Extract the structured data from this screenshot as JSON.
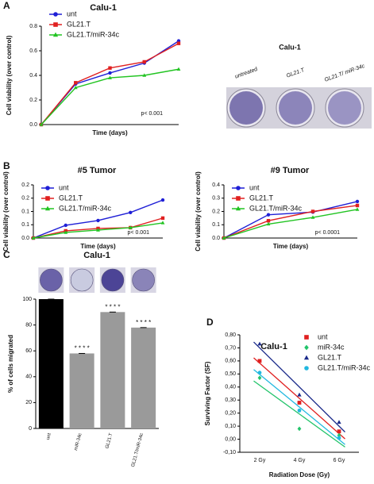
{
  "chart_data": [
    {
      "type": "line",
      "panel": "A",
      "title": "Calu-1",
      "ylabel": "Cell viability (over control)",
      "xlabel": "Time (days)",
      "annotation": "p< 0.001",
      "categories": [
        null,
        null,
        null,
        null,
        null
      ],
      "ylim": [
        0,
        0.8
      ],
      "yticks": [
        {
          "value": 0,
          "label": "0.0"
        },
        {
          "value": 0.2,
          "label": "0.2"
        },
        {
          "value": 0.4,
          "label": "0.4"
        },
        {
          "value": 0.6,
          "label": "0.6"
        },
        {
          "value": 0.8,
          "label": "0.8"
        }
      ],
      "legend": "upper left",
      "series": [
        {
          "name": "unt",
          "color": "#1f1fd6",
          "marker": "circle",
          "values": [
            0,
            0.33,
            0.42,
            0.5,
            0.68
          ]
        },
        {
          "name": "GL21.T",
          "color": "#e02020",
          "marker": "square",
          "values": [
            0,
            0.34,
            0.46,
            0.51,
            0.66
          ]
        },
        {
          "name": "GL21.T/miR-34c",
          "color": "#22c422",
          "marker": "triangle",
          "values": [
            0,
            0.3,
            0.38,
            0.4,
            0.45
          ]
        }
      ]
    },
    {
      "type": "image",
      "title": "Calu-1",
      "labels": [
        "untreated",
        "GL21.T",
        "GL21.T/ miR-34c"
      ]
    },
    {
      "type": "line",
      "panel": "B",
      "title": "#5 Tumor",
      "ylabel": "Cell viability (over control)",
      "xlabel": "Time (days)",
      "annotation": "p< 0.001",
      "categories": [
        null,
        null,
        null,
        null,
        null
      ],
      "ylim": [
        0,
        0.2
      ],
      "yticks": [
        {
          "value": 0,
          "label": "0.0"
        },
        {
          "value": 0.05,
          "label": "0.1"
        },
        0.1,
        {
          "value": 0.15,
          "label": "0.2"
        },
        0.2
      ],
      "legend": "upper left",
      "series": [
        {
          "name": "unt",
          "color": "#1f1fd6",
          "marker": "circle",
          "values": [
            0,
            0.048,
            0.066,
            0.096,
            0.143
          ]
        },
        {
          "name": "GL21.T",
          "color": "#e02020",
          "marker": "square",
          "values": [
            0,
            0.027,
            0.036,
            0.039,
            0.075
          ]
        },
        {
          "name": "GL21.T/miR-34c",
          "color": "#22c422",
          "marker": "triangle",
          "values": [
            0,
            0.021,
            0.03,
            0.039,
            0.057
          ]
        }
      ]
    },
    {
      "type": "line",
      "title": "#9 Tumor",
      "ylabel": "Cell viability (over control)",
      "xlabel": "Time (days)",
      "annotation": "p< 0.0001",
      "categories": [
        null,
        null,
        null,
        null
      ],
      "ylim": [
        0,
        0.4
      ],
      "yticks": [
        {
          "value": 0,
          "label": "0.0"
        },
        0.1,
        0.2,
        0.3,
        0.4
      ],
      "legend": "upper left",
      "series": [
        {
          "name": "unt",
          "color": "#1f1fd6",
          "marker": "circle",
          "values": [
            0,
            0.175,
            0.195,
            0.275
          ]
        },
        {
          "name": "GL21.T",
          "color": "#e02020",
          "marker": "square",
          "values": [
            0,
            0.13,
            0.2,
            0.245
          ]
        },
        {
          "name": "GL21.T/miR-34c",
          "color": "#22c422",
          "marker": "triangle",
          "values": [
            0,
            0.105,
            0.155,
            0.215
          ]
        }
      ]
    },
    {
      "type": "bar",
      "panel": "C",
      "title": "Calu-1",
      "ylabel": "% of cells migrated",
      "categories": [
        "unt",
        "miR-34c",
        "GL21.T",
        "GL21.T/miR-34c"
      ],
      "values": [
        100,
        58,
        90,
        78
      ],
      "colors": [
        "#000000",
        "#9a9a9a",
        "#9a9a9a",
        "#9a9a9a"
      ],
      "bar_annotations": [
        null,
        "* * * *",
        "* * * *",
        "* * * *"
      ],
      "ylim": [
        0,
        100
      ],
      "yticks": [
        0,
        20,
        40,
        60,
        80,
        100
      ]
    },
    {
      "type": "scatter",
      "panel": "D",
      "title": "Calu-1",
      "ylabel": "Surviving Factor (SF)",
      "xlabel": "Radiation Dose (Gy)",
      "categories": [
        "2 Gy",
        "4 Gy",
        "6 Gy"
      ],
      "ylim": [
        -0.1,
        0.8
      ],
      "yticks": [
        {
          "value": -0.1,
          "label": "-0,10"
        },
        {
          "value": 0,
          "label": "0,00"
        },
        {
          "value": 0.1,
          "label": "0,10"
        },
        {
          "value": 0.2,
          "label": "0,20"
        },
        {
          "value": 0.3,
          "label": "0,30"
        },
        {
          "value": 0.4,
          "label": "0,40"
        },
        {
          "value": 0.5,
          "label": "0,50"
        },
        {
          "value": 0.6,
          "label": "0,60"
        },
        {
          "value": 0.7,
          "label": "0,70"
        },
        {
          "value": 0.8,
          "label": "0,80"
        }
      ],
      "legend": "upper right",
      "trendline": true,
      "series": [
        {
          "name": "unt",
          "color": "#e02020",
          "marker": "square",
          "values": [
            0.6,
            0.28,
            0.06
          ]
        },
        {
          "name": "miR-34c",
          "color": "#22c46a",
          "marker": "diamond",
          "values": [
            0.47,
            0.08,
            0.03
          ]
        },
        {
          "name": "GL21.T",
          "color": "#1a2a8a",
          "marker": "triangle",
          "values": [
            0.73,
            0.34,
            0.13
          ]
        },
        {
          "name": "GL21.T/miR-34c",
          "color": "#22b8e0",
          "marker": "circle",
          "values": [
            0.51,
            0.22,
            0.01
          ]
        }
      ]
    }
  ]
}
